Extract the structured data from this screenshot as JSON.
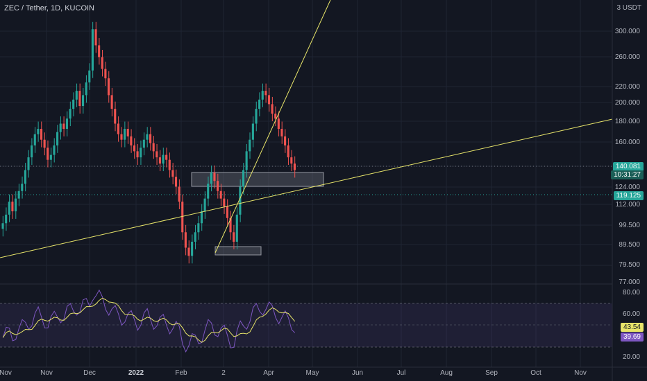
{
  "header": {
    "title": "ZEC / Tether, 1D, KUCOIN"
  },
  "axis": {
    "unit": "3 USDT",
    "price_ticks": [
      "300.000",
      "260.000",
      "220.000",
      "200.000",
      "180.000",
      "160.000",
      "140.000",
      "124.000",
      "112.000",
      "99.500",
      "89.500",
      "79.500",
      "77.000"
    ],
    "rsi_ticks": [
      "80.00",
      "60.00",
      "20.00"
    ],
    "time_ticks": [
      "Nov",
      "Dec",
      "2022",
      "Feb",
      "2",
      "Apr",
      "May",
      "Jun",
      "Jul",
      "Aug",
      "Sep",
      "Oct",
      "Nov"
    ]
  },
  "badges": {
    "price": "140.081",
    "countdown": "10:31:27",
    "level": "119.125",
    "rsi_a": "43.54",
    "rsi_b": "39.69"
  },
  "colors": {
    "up": "#26a69a",
    "down": "#ef5350",
    "trend": "#e8e56a",
    "rsi": "#7e57c2",
    "rsi_ma": "#e8e56a"
  },
  "chart_data": {
    "type": "candlestick",
    "price_ylim": [
      77,
      320
    ],
    "closes": [
      105,
      110,
      118,
      112,
      120,
      125,
      130,
      140,
      150,
      160,
      170,
      175,
      165,
      158,
      148,
      152,
      160,
      172,
      180,
      175,
      185,
      195,
      205,
      215,
      198,
      210,
      225,
      240,
      300,
      275,
      258,
      242,
      230,
      210,
      195,
      180,
      170,
      165,
      175,
      168,
      160,
      155,
      150,
      158,
      165,
      170,
      162,
      155,
      150,
      145,
      152,
      148,
      140,
      135,
      128,
      118,
      100,
      92,
      88,
      95,
      100,
      105,
      112,
      120,
      130,
      138,
      132,
      125,
      120,
      115,
      108,
      100,
      95,
      110,
      128,
      140,
      155,
      165,
      180,
      195,
      205,
      215,
      210,
      200,
      190,
      185,
      175,
      168,
      160,
      150,
      145,
      140
    ]
  }
}
